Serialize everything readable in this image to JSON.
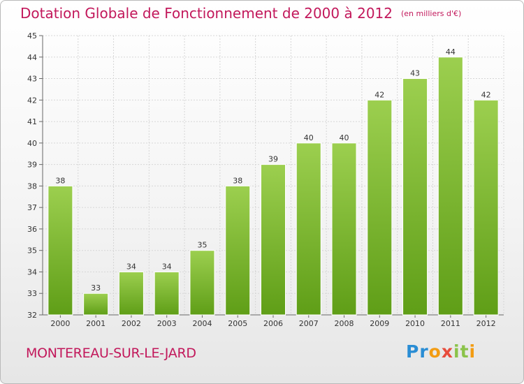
{
  "header": {
    "title": "Dotation Globale de Fonctionnement de 2000 à 2012",
    "unit": "(en milliers d'€)"
  },
  "footer": {
    "commune": "MONTEREAU-SUR-LE-JARD",
    "logo": "Proxiti"
  },
  "chart_data": {
    "type": "bar",
    "title": "Dotation Globale de Fonctionnement de 2000 à 2012",
    "subtitle": "(en milliers d'€)",
    "categories": [
      "2000",
      "2001",
      "2002",
      "2003",
      "2004",
      "2005",
      "2006",
      "2007",
      "2008",
      "2009",
      "2010",
      "2011",
      "2012"
    ],
    "values": [
      38,
      33,
      34,
      34,
      35,
      38,
      39,
      40,
      40,
      42,
      43,
      44,
      42
    ],
    "ylim": [
      32,
      45
    ],
    "yticks": [
      32,
      33,
      34,
      35,
      36,
      37,
      38,
      39,
      40,
      41,
      42,
      43,
      44,
      45
    ],
    "grid": true,
    "bar_color": "#8bc34a"
  }
}
